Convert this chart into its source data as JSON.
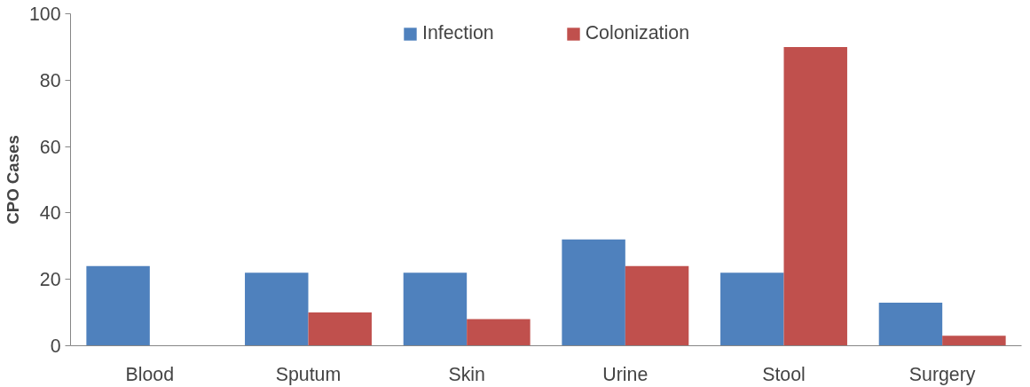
{
  "chart_data": {
    "type": "bar",
    "ylabel": "CPO Cases",
    "categories": [
      "Blood",
      "Sputum",
      "Skin",
      "Urine",
      "Stool",
      "Surgery"
    ],
    "series": [
      {
        "name": "Infection",
        "color": "#4f81bd",
        "values": [
          24,
          22,
          22,
          32,
          22,
          13
        ]
      },
      {
        "name": "Colonization",
        "color": "#c0504d",
        "values": [
          0,
          10,
          8,
          24,
          90,
          3
        ]
      }
    ],
    "ylim": [
      0,
      100
    ],
    "yticks": [
      0,
      20,
      40,
      60,
      80,
      100
    ],
    "grid": false,
    "legend": "top"
  }
}
